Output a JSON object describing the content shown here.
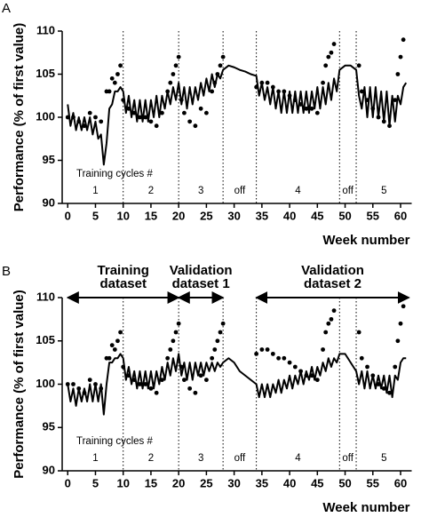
{
  "chart_data": [
    {
      "type": "line",
      "panel_label": "A",
      "ylabel": "Performance (% of first value)",
      "xlabel": "Week number",
      "xlim": [
        -1,
        62
      ],
      "ylim": [
        90,
        110
      ],
      "xticks": [
        0,
        5,
        10,
        15,
        20,
        25,
        30,
        35,
        40,
        45,
        50,
        55,
        60
      ],
      "yticks": [
        90,
        95,
        100,
        105,
        110
      ],
      "vlines": [
        10,
        20,
        28,
        34,
        49,
        52
      ],
      "segment_caption": "Training cycles #",
      "segments": [
        "1",
        "2",
        "3",
        "off",
        "4",
        "off",
        "5"
      ],
      "series": [
        {
          "style": "line",
          "color": "#000000",
          "x": [
            0,
            0.5,
            1,
            1.5,
            2,
            2.5,
            3,
            3.5,
            4,
            4.5,
            5,
            5.5,
            6,
            6.5,
            7,
            7.5,
            8,
            8.5,
            9,
            9.5,
            10,
            10.5,
            11,
            11.5,
            12,
            12.5,
            13,
            13.5,
            14,
            14.5,
            15,
            15.5,
            16,
            16.5,
            17,
            17.5,
            18,
            18.5,
            19,
            19.5,
            20,
            20.5,
            21,
            21.5,
            22,
            22.5,
            23,
            23.5,
            24,
            24.5,
            25,
            25.5,
            26,
            26.5,
            27,
            27.5,
            28,
            29,
            30,
            31,
            32,
            33,
            34,
            34.5,
            35,
            35.5,
            36,
            36.5,
            37,
            37.5,
            38,
            38.5,
            39,
            39.5,
            40,
            40.5,
            41,
            41.5,
            42,
            42.5,
            43,
            43.5,
            44,
            44.5,
            45,
            45.5,
            46,
            46.5,
            47,
            47.5,
            48,
            48.5,
            49,
            50,
            51,
            52,
            52.5,
            53,
            53.5,
            54,
            54.5,
            55,
            55.5,
            56,
            56.5,
            57,
            57.5,
            58,
            58.5,
            59,
            59.5,
            60,
            60.5,
            61
          ],
          "values": [
            101.5,
            99,
            100.5,
            98.5,
            100,
            98.5,
            100,
            98.5,
            100,
            98,
            99.5,
            97.5,
            98,
            94.5,
            97,
            101,
            101.5,
            103,
            103,
            103.5,
            103,
            100.5,
            102.5,
            100,
            102,
            99.5,
            102,
            99.5,
            102,
            99.5,
            102,
            100,
            102.5,
            100,
            102.5,
            101,
            103,
            101.5,
            103.5,
            102,
            104,
            101.5,
            103.5,
            101,
            103.5,
            101.5,
            103.5,
            102,
            104,
            102.5,
            104.5,
            103,
            105,
            103.5,
            105,
            104.5,
            105.5,
            106,
            105.8,
            105.5,
            105.3,
            105,
            104.8,
            102.5,
            104,
            102,
            103.5,
            101.5,
            103.5,
            101,
            103,
            100.5,
            103,
            100.5,
            103,
            100.5,
            103,
            100.5,
            103,
            100.5,
            103,
            100.5,
            103,
            101,
            103.5,
            101,
            103.5,
            101.5,
            104,
            102,
            104.5,
            103,
            105.5,
            106,
            106,
            105.5,
            102.5,
            101,
            103.5,
            100,
            103.5,
            100,
            103.5,
            100,
            103,
            99.5,
            103,
            99,
            102.5,
            99.5,
            102.5,
            101.5,
            103.5,
            104
          ]
        },
        {
          "style": "markers",
          "color": "#000000",
          "x": [
            0,
            1,
            2,
            3,
            4,
            5,
            6,
            7,
            7.5,
            8,
            8.5,
            9,
            9.5,
            10,
            11,
            12,
            13,
            14,
            15,
            16,
            17,
            18,
            18.5,
            19,
            19.5,
            20,
            20.5,
            21,
            22,
            23,
            24,
            25,
            26,
            26.5,
            27,
            27.5,
            28,
            34,
            35,
            36,
            37,
            38,
            39,
            40,
            41,
            42,
            43,
            44,
            45,
            46,
            46.5,
            47,
            47.5,
            48,
            52.5,
            53,
            54,
            55,
            56,
            57,
            58,
            59,
            59.5,
            60,
            60.5
          ],
          "values": [
            100,
            100,
            99.5,
            99,
            100.5,
            100,
            99.5,
            103,
            103,
            104.5,
            104,
            105,
            106,
            102,
            101,
            100.5,
            100,
            100,
            99.5,
            99,
            100.5,
            103,
            104,
            105,
            106,
            107,
            102,
            100.5,
            99.5,
            99,
            101,
            100.5,
            103,
            104,
            105,
            106,
            107,
            103.5,
            104,
            104,
            103.5,
            103,
            103,
            102.5,
            102,
            101.5,
            101,
            101,
            100.5,
            104,
            106,
            107,
            107.5,
            108.5,
            106,
            103,
            102,
            101,
            100,
            99.5,
            99,
            102,
            105,
            107,
            109
          ]
        }
      ]
    },
    {
      "type": "line",
      "panel_label": "B",
      "ylabel": "Performance (% of first value)",
      "xlabel": "Week number",
      "xlim": [
        -1,
        62
      ],
      "ylim": [
        90,
        110
      ],
      "xticks": [
        0,
        5,
        10,
        15,
        20,
        25,
        30,
        35,
        40,
        45,
        50,
        55,
        60
      ],
      "yticks": [
        90,
        95,
        100,
        105,
        110
      ],
      "vlines": [
        10,
        20,
        28,
        34,
        49,
        52
      ],
      "segment_caption": "Training cycles #",
      "segments": [
        "1",
        "2",
        "3",
        "off",
        "4",
        "off",
        "5"
      ],
      "datasets": [
        {
          "lines": [
            "Training",
            "dataset"
          ],
          "range": [
            0,
            20
          ]
        },
        {
          "lines": [
            "Validation",
            "dataset 1"
          ],
          "range": [
            20,
            28
          ]
        },
        {
          "lines": [
            "Validation",
            "dataset 2"
          ],
          "range": [
            34,
            61.5
          ]
        }
      ],
      "series": [
        {
          "style": "line",
          "color": "#000000",
          "x": [
            0,
            0.5,
            1,
            1.5,
            2,
            2.5,
            3,
            3.5,
            4,
            4.5,
            5,
            5.5,
            6,
            6.5,
            7,
            7.5,
            8,
            8.5,
            9,
            9.5,
            10,
            10.5,
            11,
            11.5,
            12,
            12.5,
            13,
            13.5,
            14,
            14.5,
            15,
            15.5,
            16,
            16.5,
            17,
            17.5,
            18,
            18.5,
            19,
            19.5,
            20,
            20.5,
            21,
            21.5,
            22,
            22.5,
            23,
            23.5,
            24,
            24.5,
            25,
            25.5,
            26,
            26.5,
            27,
            27.5,
            28,
            29,
            30,
            31,
            32,
            33,
            34,
            34.5,
            35,
            35.5,
            36,
            36.5,
            37,
            37.5,
            38,
            38.5,
            39,
            39.5,
            40,
            40.5,
            41,
            41.5,
            42,
            42.5,
            43,
            43.5,
            44,
            44.5,
            45,
            45.5,
            46,
            46.5,
            47,
            47.5,
            48,
            48.5,
            49,
            50,
            51,
            52,
            52.5,
            53,
            53.5,
            54,
            54.5,
            55,
            55.5,
            56,
            56.5,
            57,
            57.5,
            58,
            58.5,
            59,
            59.5,
            60,
            60.5,
            61
          ],
          "values": [
            100,
            98,
            99.5,
            97.5,
            99.5,
            98,
            99.5,
            98,
            100,
            98,
            100,
            98,
            100,
            96.5,
            100,
            102.5,
            102.5,
            103,
            103,
            103.5,
            103,
            100.5,
            102,
            100,
            101.5,
            99.5,
            101.5,
            99.5,
            101.5,
            99.5,
            101.5,
            99.5,
            101.5,
            100,
            102,
            100.5,
            102.5,
            101,
            103,
            101.5,
            103.5,
            101,
            102.5,
            100.5,
            102.5,
            100.5,
            102.5,
            101,
            102.5,
            101,
            102.5,
            101.5,
            102.5,
            101.5,
            102.5,
            102,
            102.5,
            103,
            102.5,
            101.5,
            101,
            100.5,
            100,
            98.5,
            100,
            98.5,
            100,
            98.5,
            100,
            99,
            100.5,
            99,
            100.5,
            99.5,
            101,
            99.5,
            101,
            100,
            101.5,
            100,
            101.5,
            100.5,
            102,
            100.5,
            102,
            101,
            102.5,
            101.5,
            103,
            102,
            103,
            102.5,
            103.5,
            103.5,
            102.5,
            101.5,
            100,
            101.5,
            99.5,
            101.5,
            99.5,
            101,
            99.5,
            101,
            99.5,
            101,
            99,
            101,
            98.5,
            101,
            100.5,
            102.5,
            103,
            103
          ]
        },
        {
          "style": "markers",
          "color": "#000000",
          "x": [
            0,
            1,
            2,
            3,
            4,
            5,
            6,
            7,
            7.5,
            8,
            8.5,
            9,
            9.5,
            10,
            11,
            12,
            13,
            14,
            15,
            16,
            17,
            18,
            18.5,
            19,
            19.5,
            20,
            20.5,
            21,
            22,
            23,
            24,
            25,
            26,
            26.5,
            27,
            27.5,
            28,
            34,
            35,
            36,
            37,
            38,
            39,
            40,
            41,
            42,
            43,
            44,
            45,
            46,
            46.5,
            47,
            47.5,
            48,
            52.5,
            53,
            54,
            55,
            56,
            57,
            58,
            59,
            59.5,
            60,
            60.5
          ],
          "values": [
            100,
            100,
            99.5,
            99,
            100.5,
            100,
            99.5,
            103,
            103,
            104.5,
            104,
            105,
            106,
            102,
            101,
            100.5,
            100,
            100,
            99.5,
            99,
            100.5,
            103,
            104,
            105,
            106,
            107,
            102,
            100.5,
            99.5,
            99,
            101,
            100.5,
            103,
            104,
            105,
            106,
            107,
            103.5,
            104,
            104,
            103.5,
            103,
            103,
            102.5,
            102,
            101.5,
            101,
            101,
            100.5,
            104,
            106,
            107,
            107.5,
            108.5,
            106,
            103,
            102,
            101,
            100,
            99.5,
            99,
            102,
            105,
            107,
            109
          ]
        }
      ]
    }
  ]
}
